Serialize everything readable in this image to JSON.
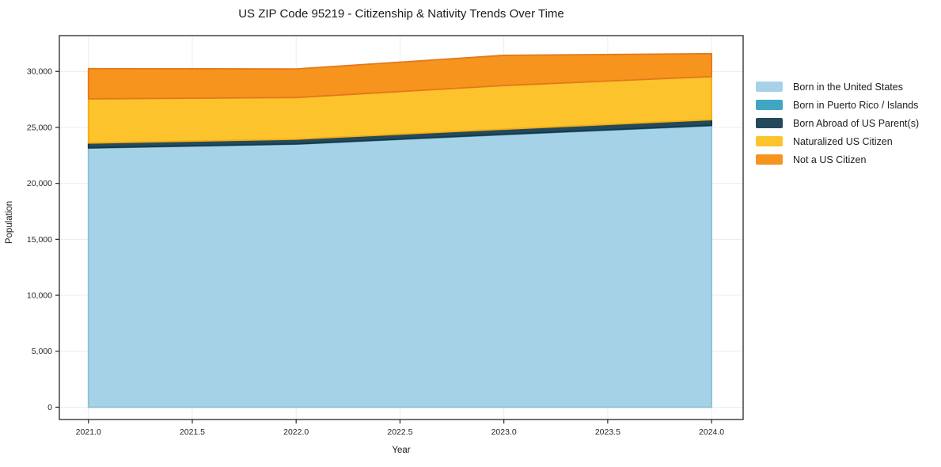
{
  "chart_data": {
    "type": "area",
    "stacked": true,
    "title": "US ZIP Code 95219 - Citizenship & Nativity Trends Over Time",
    "xlabel": "Year",
    "ylabel": "Population",
    "x": [
      2021,
      2022,
      2023,
      2024
    ],
    "series": [
      {
        "name": "Born in the United States",
        "values": [
          23150,
          23500,
          24350,
          25150
        ],
        "color": "#a6d2e8",
        "edge_color": "#8cc0da"
      },
      {
        "name": "Born in Puerto Rico / Islands",
        "values": [
          30,
          30,
          40,
          40
        ],
        "color": "#41a6c3",
        "edge_color": "#3493b1"
      },
      {
        "name": "Born Abroad of US Parent(s)",
        "values": [
          420,
          420,
          450,
          500
        ],
        "color": "#24495c",
        "edge_color": "#1a3744"
      },
      {
        "name": "Naturalized US Citizen",
        "values": [
          3950,
          3720,
          3900,
          3850
        ],
        "color": "#fcc32d",
        "edge_color": "#f0ae14"
      },
      {
        "name": "Not a US Citizen",
        "values": [
          2700,
          2550,
          2700,
          2050
        ],
        "color": "#f7941e",
        "edge_color": "#e2791b"
      }
    ],
    "totals": [
      30250,
      30220,
      31440,
      31590
    ],
    "xlim": [
      2020.86,
      2024.152
    ],
    "ylim": [
      -1100,
      33200
    ],
    "xticks": {
      "values": [
        2021.0,
        2021.5,
        2022.0,
        2022.5,
        2023.0,
        2023.5,
        2024.0
      ],
      "labels": [
        "2021.0",
        "2021.5",
        "2022.0",
        "2022.5",
        "2023.0",
        "2023.5",
        "2024.0"
      ]
    },
    "yticks": {
      "values": [
        0,
        5000,
        10000,
        15000,
        20000,
        25000,
        30000
      ],
      "labels": [
        "0",
        "5,000",
        "10,000",
        "15,000",
        "20,000",
        "25,000",
        "30,000"
      ]
    },
    "grid": true,
    "grid_color": "#ececec",
    "axis_color": "#262626",
    "tick_label_color": "#262626",
    "legend_position": "right"
  }
}
